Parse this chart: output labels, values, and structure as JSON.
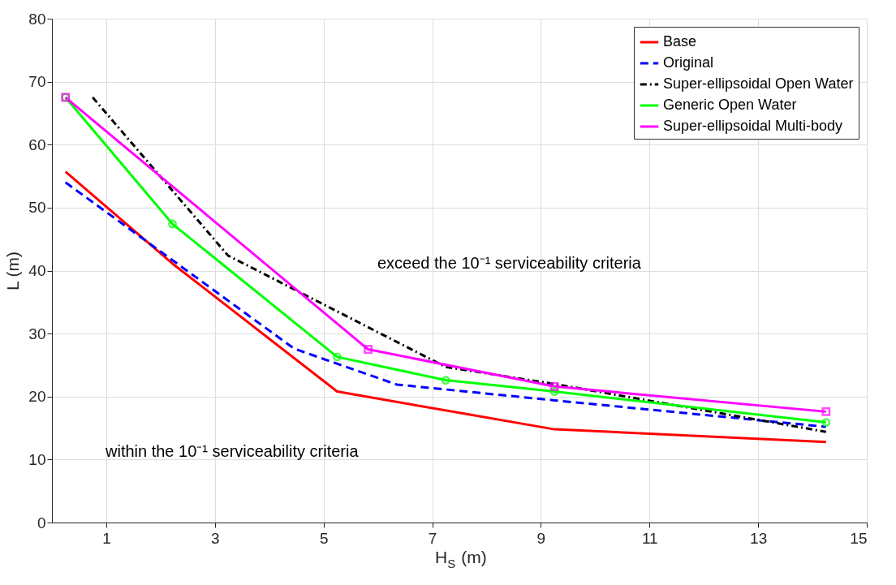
{
  "chart_data": {
    "type": "line",
    "xlabel": "H$_{S}$ (m)",
    "ylabel": "L (m)",
    "xlim": [
      0,
      15
    ],
    "xticks": [
      {
        "value": 1,
        "label": "1"
      },
      {
        "value": 3,
        "label": "3"
      },
      {
        "value": 5,
        "label": "5"
      },
      {
        "value": 7,
        "label": "7"
      },
      {
        "value": 9,
        "label": "9"
      },
      {
        "value": 11,
        "label": "11"
      },
      {
        "value": 13,
        "label": "13"
      },
      {
        "value": 15,
        "label": "15"
      }
    ],
    "ylim": [
      0,
      80
    ],
    "yticks": [
      0,
      10,
      20,
      30,
      40,
      50,
      60,
      70,
      80
    ],
    "grid": true,
    "legend": "top right",
    "annotations": [
      "exceed the 10⁻¹ serviceability criteria",
      "within the 10⁻¹ serviceability criteria"
    ],
    "series": [
      {
        "name": "Base",
        "color": "#ff0000",
        "line_style": "solid",
        "marker": "none",
        "x": [
          0.25,
          2.22,
          5.25,
          9.25,
          14.25
        ],
        "values": [
          55.7,
          41.1,
          20.8,
          14.8,
          12.8
        ]
      },
      {
        "name": "Original",
        "color": "#0000ff",
        "line_style": "dashed",
        "marker": "none",
        "x": [
          0.25,
          4.46,
          6.35,
          9.25,
          14.25
        ],
        "values": [
          54.0,
          27.6,
          21.9,
          19.4,
          15.2
        ]
      },
      {
        "name": "Super-ellipsoidal Open Water",
        "color": "#000000",
        "line_style": "dashdot",
        "marker": "none",
        "x": [
          0.75,
          3.24,
          7.25,
          9.25,
          14.25
        ],
        "values": [
          67.5,
          42.4,
          24.7,
          22.0,
          14.4
        ]
      },
      {
        "name": "Generic Open Water",
        "color": "#00ff00",
        "line_style": "solid",
        "marker": "circle",
        "x": [
          0.25,
          2.22,
          5.25,
          7.25,
          9.25,
          14.25
        ],
        "values": [
          67.5,
          47.4,
          26.3,
          22.6,
          20.8,
          15.9
        ]
      },
      {
        "name": "Super-ellipsoidal Multi-body",
        "color": "#ff00ff",
        "line_style": "solid",
        "marker": "square",
        "x": [
          0.25,
          5.82,
          9.25,
          14.25
        ],
        "values": [
          67.5,
          27.5,
          21.6,
          17.6
        ]
      }
    ]
  }
}
